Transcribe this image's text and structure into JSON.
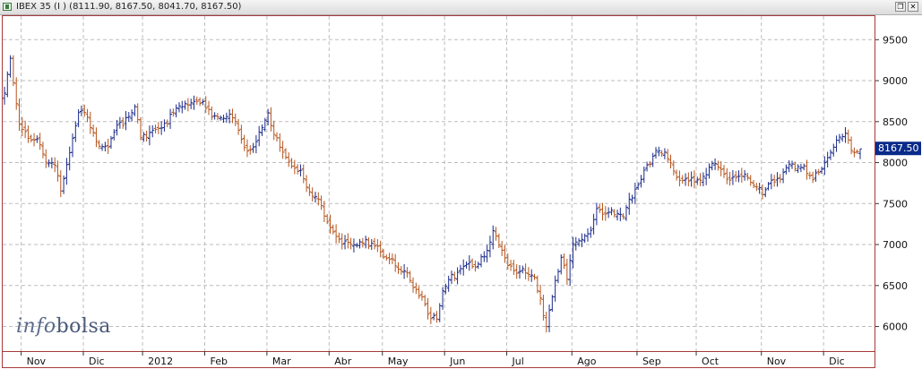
{
  "window": {
    "title": "IBEX 35 (I ) (8111.90, 8167.50, 8041.70, 8167.50)",
    "restore_glyph": "❐",
    "close_glyph": "✕"
  },
  "watermark": {
    "part1": "info",
    "part2": "bolsa"
  },
  "colors": {
    "up": "#1a2a8a",
    "down": "#b5541c",
    "grid": "#bdbdbd",
    "frame": "#a83a3a",
    "last_badge": "#0a2a8a"
  },
  "icons": {
    "app": "chart-window-icon",
    "restore": "restore-icon",
    "close": "close-icon"
  },
  "chart_data": {
    "type": "ohlc",
    "title": "IBEX 35 (I ) (8111.90, 8167.50, 8041.70, 8167.50)",
    "ohlc_last": {
      "open": 8111.9,
      "high": 8167.5,
      "low": 8041.7,
      "close": 8167.5
    },
    "last_price_label": "8167.50",
    "last_price": 8167.5,
    "ylim": [
      5700,
      9700
    ],
    "yticks": [
      6000,
      6500,
      7000,
      7500,
      8000,
      8500,
      9000,
      9500
    ],
    "ytick_labels": [
      "6000",
      "6500",
      "7000",
      "7500",
      "8000",
      "8500",
      "9000",
      "9500"
    ],
    "grid": true,
    "x_months": [
      {
        "label": "Nov",
        "bar": 2
      },
      {
        "label": "Dic",
        "bar": 23
      },
      {
        "label": "2012",
        "bar": 43
      },
      {
        "label": "Feb",
        "bar": 64
      },
      {
        "label": "Mar",
        "bar": 85
      },
      {
        "label": "Abr",
        "bar": 106
      },
      {
        "label": "May",
        "bar": 124
      },
      {
        "label": "Jun",
        "bar": 145
      },
      {
        "label": "Jul",
        "bar": 166
      },
      {
        "label": "Ago",
        "bar": 188
      },
      {
        "label": "Sep",
        "bar": 210
      },
      {
        "label": "Oct",
        "bar": 230
      },
      {
        "label": "Nov",
        "bar": 252
      },
      {
        "label": "Dic",
        "bar": 273
      }
    ],
    "bar_count": 290,
    "close_series": [
      [
        0,
        8800
      ],
      [
        2,
        9250
      ],
      [
        3,
        8950
      ],
      [
        5,
        8500
      ],
      [
        8,
        8350
      ],
      [
        11,
        8250
      ],
      [
        14,
        8000
      ],
      [
        17,
        7950
      ],
      [
        19,
        7700
      ],
      [
        21,
        8000
      ],
      [
        23,
        8350
      ],
      [
        25,
        8650
      ],
      [
        27,
        8600
      ],
      [
        29,
        8400
      ],
      [
        32,
        8150
      ],
      [
        35,
        8250
      ],
      [
        38,
        8500
      ],
      [
        41,
        8500
      ],
      [
        44,
        8650
      ],
      [
        46,
        8300
      ],
      [
        49,
        8400
      ],
      [
        52,
        8450
      ],
      [
        56,
        8550
      ],
      [
        59,
        8650
      ],
      [
        62,
        8700
      ],
      [
        64,
        8800
      ],
      [
        67,
        8750
      ],
      [
        69,
        8650
      ],
      [
        72,
        8500
      ],
      [
        75,
        8550
      ],
      [
        78,
        8500
      ],
      [
        81,
        8200
      ],
      [
        84,
        8200
      ],
      [
        87,
        8400
      ],
      [
        89,
        8550
      ],
      [
        91,
        8300
      ],
      [
        94,
        8150
      ],
      [
        97,
        8000
      ],
      [
        100,
        7850
      ],
      [
        103,
        7600
      ],
      [
        106,
        7500
      ],
      [
        109,
        7300
      ],
      [
        112,
        7150
      ],
      [
        115,
        7000
      ],
      [
        118,
        6950
      ],
      [
        121,
        7000
      ],
      [
        124,
        7050
      ],
      [
        127,
        6950
      ],
      [
        130,
        6800
      ],
      [
        133,
        6700
      ],
      [
        136,
        6600
      ],
      [
        139,
        6500
      ],
      [
        142,
        6300
      ],
      [
        144,
        6100
      ],
      [
        146,
        6050
      ],
      [
        148,
        6400
      ],
      [
        151,
        6600
      ],
      [
        154,
        6750
      ],
      [
        157,
        6800
      ],
      [
        160,
        6750
      ],
      [
        163,
        6900
      ],
      [
        165,
        7150
      ],
      [
        167,
        7050
      ],
      [
        170,
        6800
      ],
      [
        173,
        6700
      ],
      [
        176,
        6650
      ],
      [
        179,
        6550
      ],
      [
        181,
        6300
      ],
      [
        183,
        6000
      ],
      [
        186,
        6600
      ],
      [
        188,
        6850
      ],
      [
        190,
        6550
      ],
      [
        192,
        7000
      ],
      [
        195,
        7050
      ],
      [
        198,
        7200
      ],
      [
        200,
        7450
      ],
      [
        203,
        7400
      ],
      [
        206,
        7350
      ],
      [
        209,
        7300
      ],
      [
        212,
        7600
      ],
      [
        215,
        7850
      ],
      [
        217,
        8000
      ],
      [
        220,
        8100
      ],
      [
        223,
        8100
      ],
      [
        226,
        7900
      ],
      [
        229,
        7800
      ],
      [
        232,
        7850
      ],
      [
        235,
        7750
      ],
      [
        238,
        7900
      ],
      [
        241,
        8000
      ],
      [
        244,
        7800
      ],
      [
        247,
        7850
      ],
      [
        250,
        7800
      ],
      [
        253,
        7700
      ],
      [
        256,
        7650
      ],
      [
        259,
        7800
      ],
      [
        262,
        7850
      ],
      [
        265,
        7950
      ],
      [
        268,
        7900
      ],
      [
        271,
        7900
      ],
      [
        273,
        7850
      ],
      [
        276,
        7950
      ],
      [
        279,
        8100
      ],
      [
        281,
        8250
      ],
      [
        284,
        8300
      ],
      [
        286,
        8200
      ],
      [
        288,
        8150
      ],
      [
        289,
        8167.5
      ]
    ]
  }
}
